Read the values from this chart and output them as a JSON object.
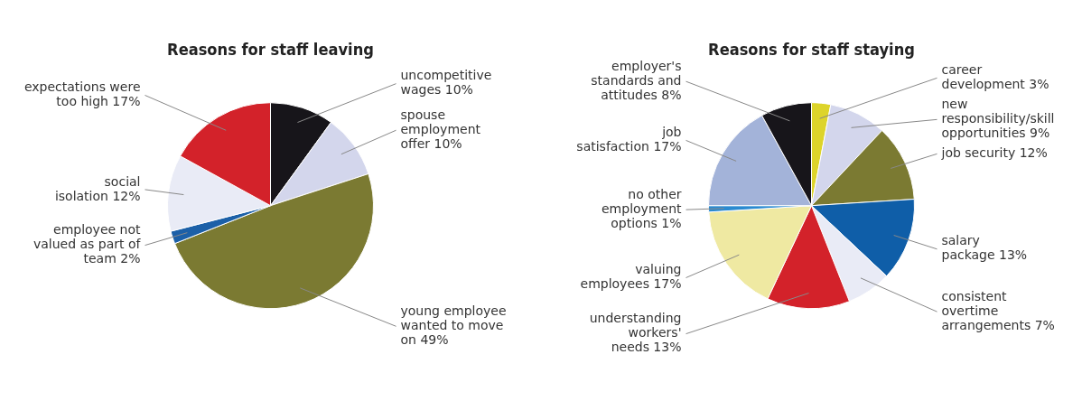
{
  "chart_data": [
    {
      "type": "pie",
      "title": "Reasons for staff leaving",
      "categories": [
        "uncompetitive wages",
        "spouse employment offer",
        "young employee wanted to move on",
        "employee not valued as part of team",
        "social isolation",
        "expectations were too high"
      ],
      "values": [
        10,
        10,
        49,
        2,
        12,
        17
      ],
      "value_labels": [
        "10%",
        "10%",
        "49%",
        "2%",
        "12%",
        "17%"
      ],
      "colors": [
        "#17151a",
        "#d3d6ec",
        "#7b7a32",
        "#1c60a8",
        "#e9ebf6",
        "#d3222a"
      ]
    },
    {
      "type": "pie",
      "title": "Reasons for staff staying",
      "categories": [
        "career development",
        "new responsibility/skill opportunities",
        "job security",
        "salary package",
        "consistent overtime arrangements",
        "understanding workers' needs",
        "valuing employees",
        "no other employment options",
        "job satisfaction",
        "employer's standards and attitudes"
      ],
      "values": [
        3,
        9,
        12,
        13,
        7,
        13,
        17,
        1,
        17,
        8
      ],
      "value_labels": [
        "3%",
        "9%",
        "12%",
        "13%",
        "7%",
        "13%",
        "17%",
        "1%",
        "17%",
        "8%"
      ],
      "colors": [
        "#ddd42a",
        "#d3d6ec",
        "#7b7a32",
        "#0f5ea8",
        "#e9ebf6",
        "#d3222a",
        "#efe9a2",
        "#2a8ad0",
        "#a3b3d9",
        "#17151a"
      ]
    }
  ]
}
